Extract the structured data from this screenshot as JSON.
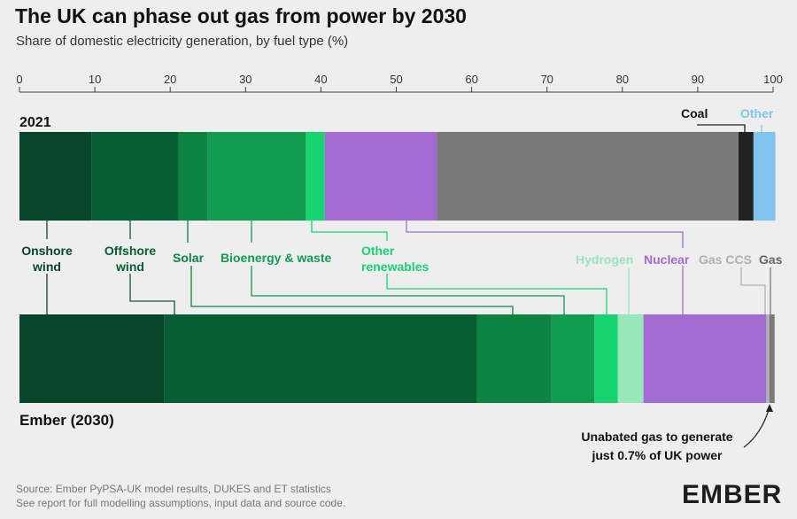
{
  "title": "The UK can phase out gas from power by 2030",
  "subtitle": "Share of domestic electricity generation, by fuel type (%)",
  "footer": {
    "line1": "Source: Ember PyPSA-UK model results, DUKES and ET statistics",
    "line2": "See report for full modelling assumptions, input data and source code."
  },
  "logo_text": "EMBER",
  "colors": {
    "onshore": "#07462a",
    "offshore": "#075d33",
    "solar": "#0e8240",
    "bioenergy": "#129c52",
    "other_renewables": "#17d36f",
    "hydrogen": "#97e7bb",
    "nuclear": "#a16bd1",
    "gas_ccs": "#b0b0b0",
    "gas": "#7a7a7a",
    "coal": "#222222",
    "other": "#7ec4ef"
  },
  "chart_data": {
    "type": "bar",
    "orientation": "horizontal-stacked",
    "xlim": [
      0,
      100
    ],
    "x_ticks": [
      0,
      10,
      20,
      30,
      40,
      50,
      60,
      70,
      80,
      90,
      100
    ],
    "categories": [
      "2021",
      "Ember (2030)"
    ],
    "series": [
      {
        "name": "Onshore wind",
        "key": "onshore",
        "values": [
          9.6,
          19.2
        ]
      },
      {
        "name": "Offshore wind",
        "key": "offshore",
        "values": [
          11.5,
          41.5
        ]
      },
      {
        "name": "Solar",
        "key": "solar",
        "values": [
          3.9,
          9.9
        ]
      },
      {
        "name": "Bioenergy & waste",
        "key": "bioenergy",
        "values": [
          13.0,
          5.7
        ]
      },
      {
        "name": "Other renewables",
        "key": "other_renewables",
        "values": [
          2.5,
          3.1
        ]
      },
      {
        "name": "Hydrogen",
        "key": "hydrogen",
        "values": [
          0,
          3.4
        ]
      },
      {
        "name": "Nuclear",
        "key": "nuclear",
        "values": [
          14.9,
          16.3
        ]
      },
      {
        "name": "Gas CCS",
        "key": "gas_ccs",
        "values": [
          0,
          0.4
        ]
      },
      {
        "name": "Gas",
        "key": "gas",
        "values": [
          40.0,
          0.7
        ]
      },
      {
        "name": "Coal",
        "key": "coal",
        "values": [
          2.0,
          0
        ]
      },
      {
        "name": "Other",
        "key": "other",
        "values": [
          2.9,
          0
        ]
      }
    ],
    "annotation": "Unabated gas to generate just 0.7% of UK power"
  }
}
